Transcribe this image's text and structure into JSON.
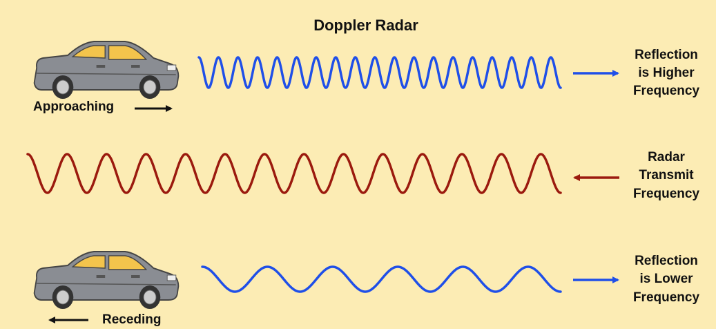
{
  "title": "Doppler Radar",
  "approaching": {
    "label": "Approaching",
    "result": [
      "Reflection",
      "is Higher",
      "Frequency"
    ]
  },
  "transmit": {
    "label": [
      "Radar",
      "Transmit",
      "Frequency"
    ]
  },
  "receding": {
    "label": "Receding",
    "result": [
      "Reflection",
      "is Lower",
      "Frequency"
    ]
  }
}
